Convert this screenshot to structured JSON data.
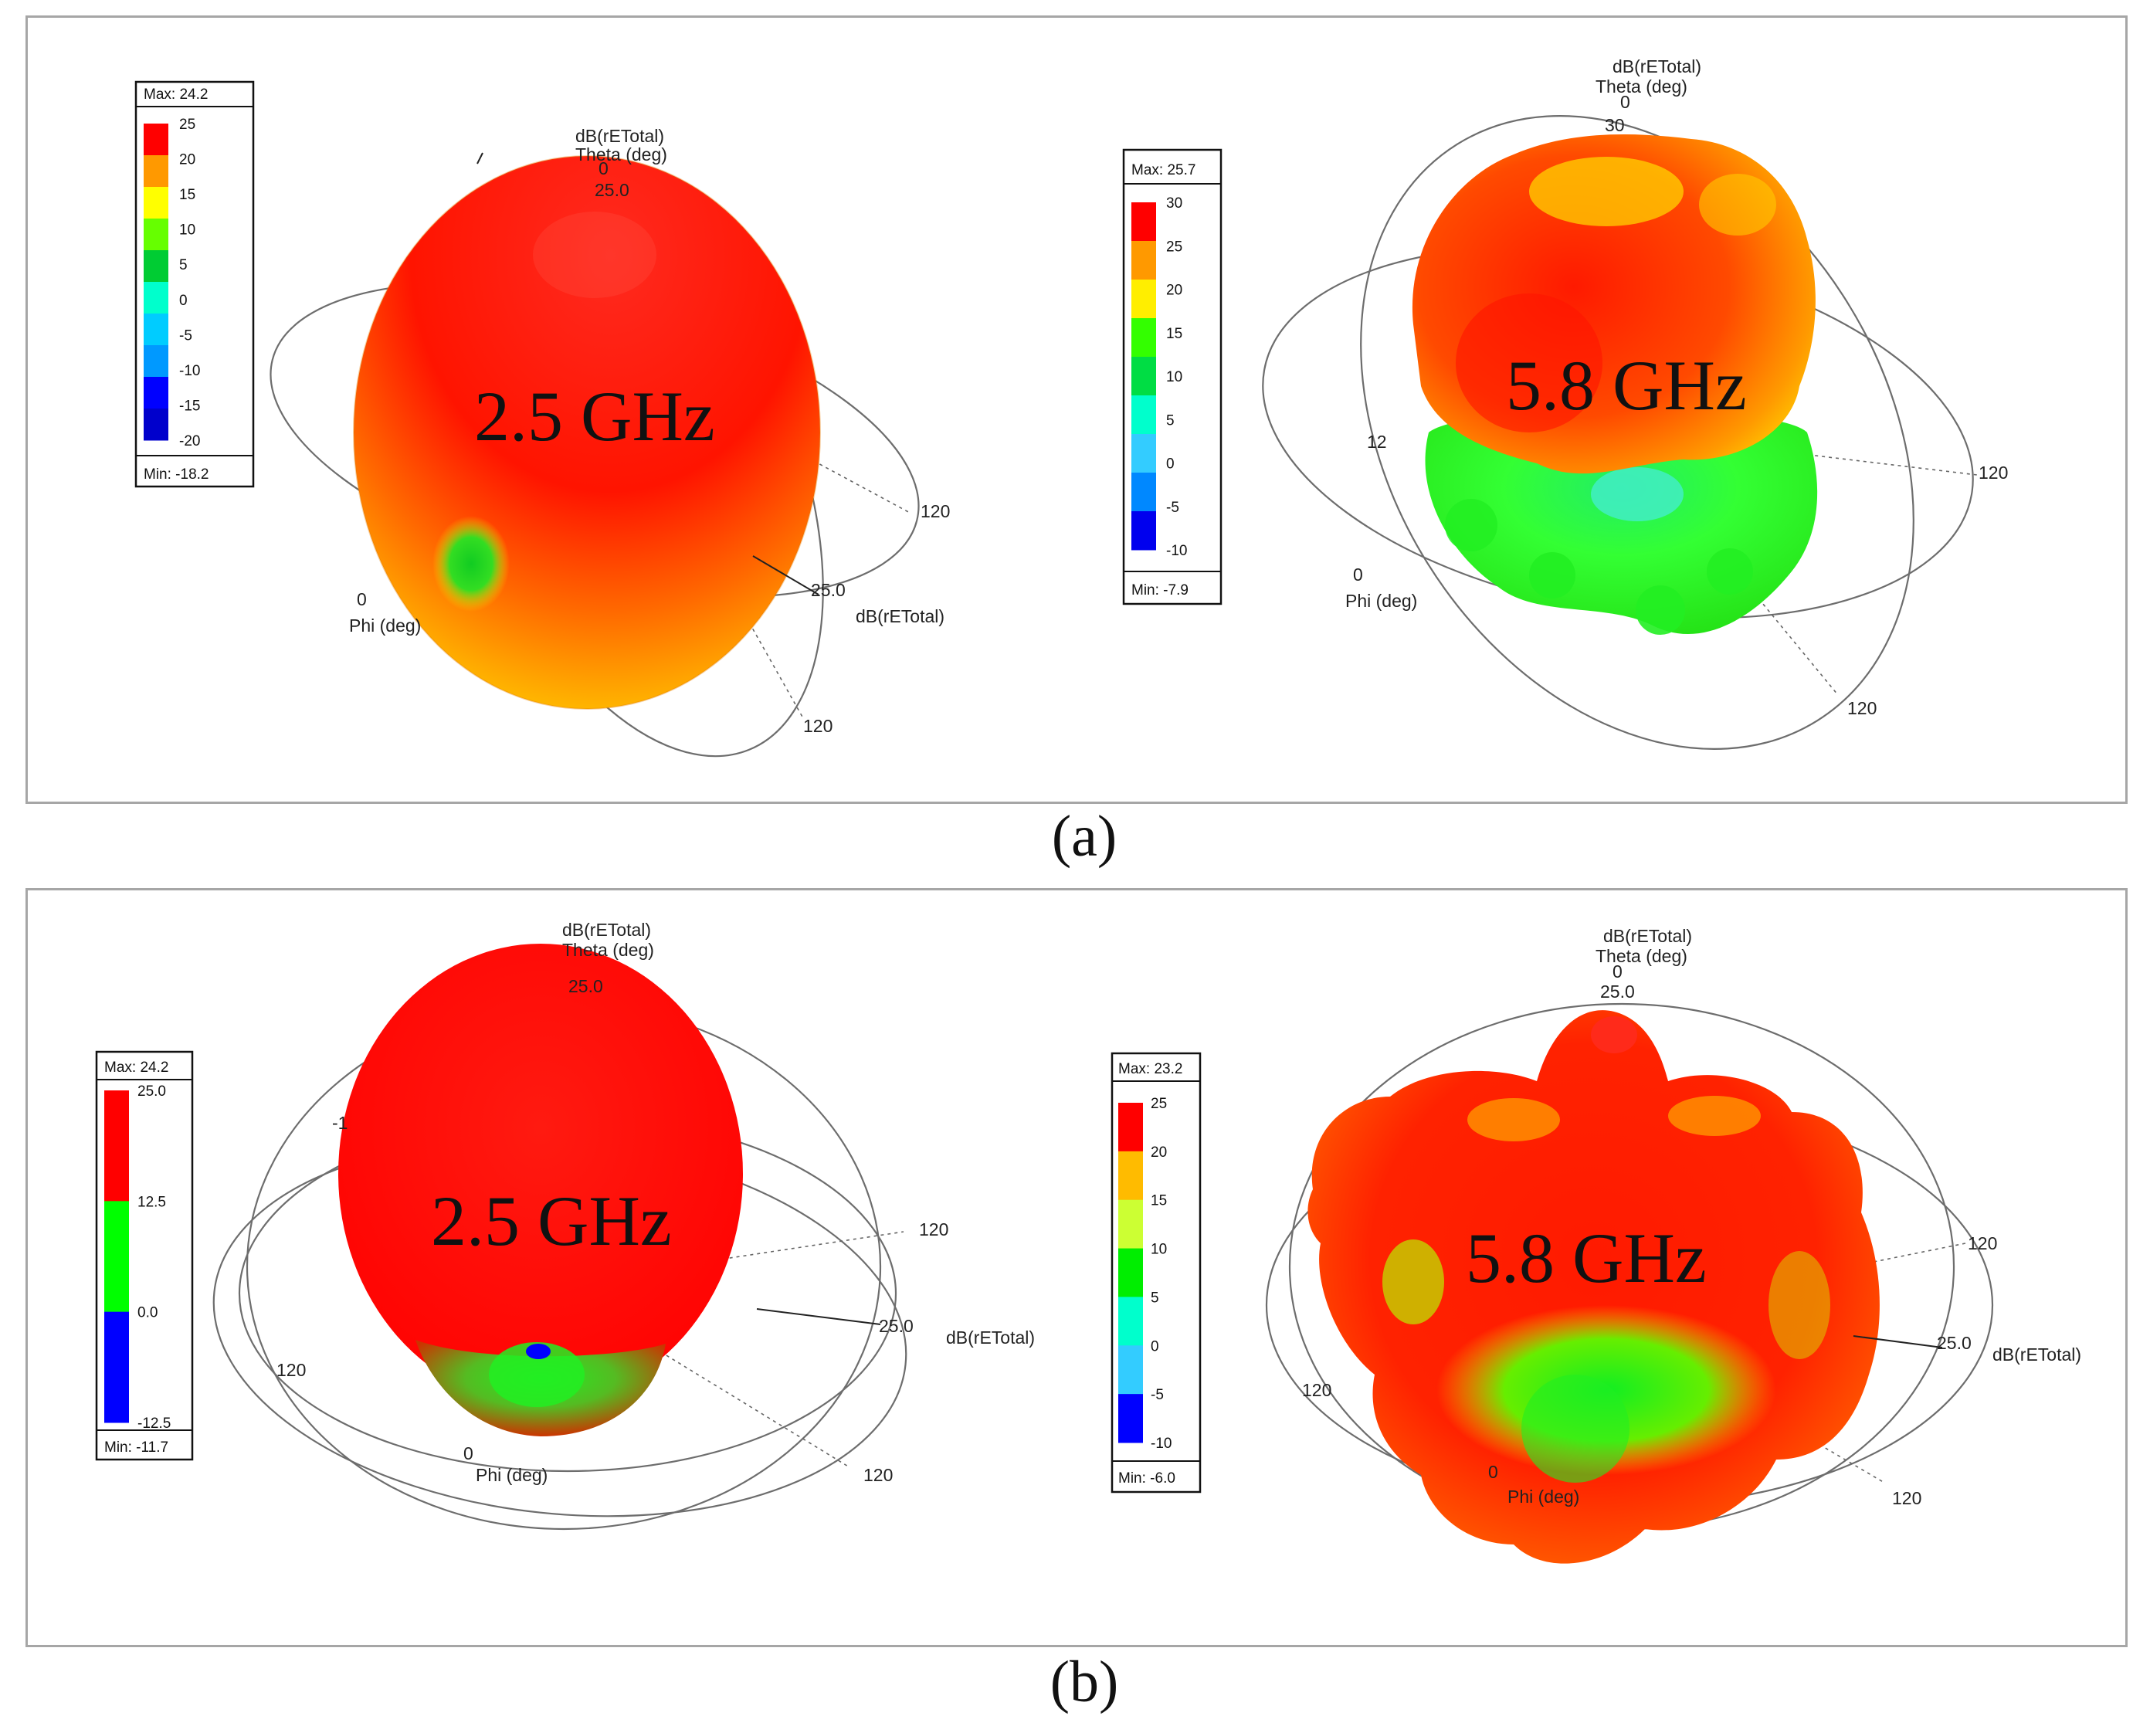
{
  "caption_a": "(a)",
  "caption_b": "(b)",
  "plots": [
    {
      "freq": "2.5 GHz",
      "max_label": "Max: 24.2",
      "min_label": "Min: -18.2",
      "legend_ticks": [
        "25",
        "20",
        "15",
        "10",
        "5",
        "0",
        "-5",
        "-10",
        "-15",
        "-20"
      ],
      "legend_colors": [
        "#ff0000",
        "#ff9900",
        "#ffff00",
        "#66ff00",
        "#00cc33",
        "#00ffcc",
        "#00ccff",
        "#0099ff",
        "#0000ff",
        "#0000cc"
      ],
      "axis_title_1": "dB(rETotal)",
      "axis_title_2": "Theta (deg)",
      "theta_0": "0",
      "theta_value": "25.0",
      "r_value": "25.0",
      "r_label": "dB(rETotal)",
      "phi_tick": "0",
      "phi_label": "Phi (deg)",
      "tick_120a": "120",
      "tick_120b": "120"
    },
    {
      "freq": "5.8 GHz",
      "max_label": "Max: 25.7",
      "min_label": "Min: -7.9",
      "legend_ticks": [
        "30",
        "25",
        "20",
        "15",
        "10",
        "5",
        "0",
        "-5",
        "-10"
      ],
      "legend_colors": [
        "#ff0000",
        "#ff9900",
        "#ffee00",
        "#33ff00",
        "#00dd44",
        "#00ffcc",
        "#33ccff",
        "#0088ff",
        "#0000ee"
      ],
      "axis_title_1": "dB(rETotal)",
      "axis_title_2": "Theta (deg)",
      "theta_0": "0",
      "theta_value": "30",
      "phi_tick": "0",
      "phi_label": "Phi (deg)",
      "tick_12": "12",
      "tick_120a": "120",
      "tick_120b": "120"
    },
    {
      "freq": "2.5 GHz",
      "max_label": "Max: 24.2",
      "min_label": "Min: -11.7",
      "legend_ticks": [
        "25.0",
        "12.5",
        "0.0",
        "-12.5"
      ],
      "legend_colors": [
        "#ff0000",
        "#00ff00",
        "#0000ff"
      ],
      "axis_title_1": "dB(rETotal)",
      "axis_title_2": "Theta (deg)",
      "theta_value": "25.0",
      "r_value": "25.0",
      "r_label": "dB(rETotal)",
      "phi_tick": "0",
      "phi_label": "Phi (deg)",
      "tick_neg1": "-1",
      "tick_120a": "120",
      "tick_120b": "120",
      "tick_120c": "120"
    },
    {
      "freq": "5.8 GHz",
      "max_label": "Max: 23.2",
      "min_label": "Min: -6.0",
      "legend_ticks": [
        "25",
        "20",
        "15",
        "10",
        "5",
        "0",
        "-5",
        "-10"
      ],
      "legend_colors": [
        "#ff0000",
        "#ffbb00",
        "#ccff33",
        "#00ee00",
        "#00ffcc",
        "#33ccff",
        "#0000ff"
      ],
      "axis_title_1": "dB(rETotal)",
      "axis_title_2": "Theta (deg)",
      "theta_0": "0",
      "theta_value": "25.0",
      "r_value": "25.0",
      "r_label": "dB(rETotal)",
      "phi_tick": "0",
      "phi_label": "Phi (deg)",
      "tick_120a": "120",
      "tick_120b": "120",
      "tick_120c": "120"
    }
  ]
}
